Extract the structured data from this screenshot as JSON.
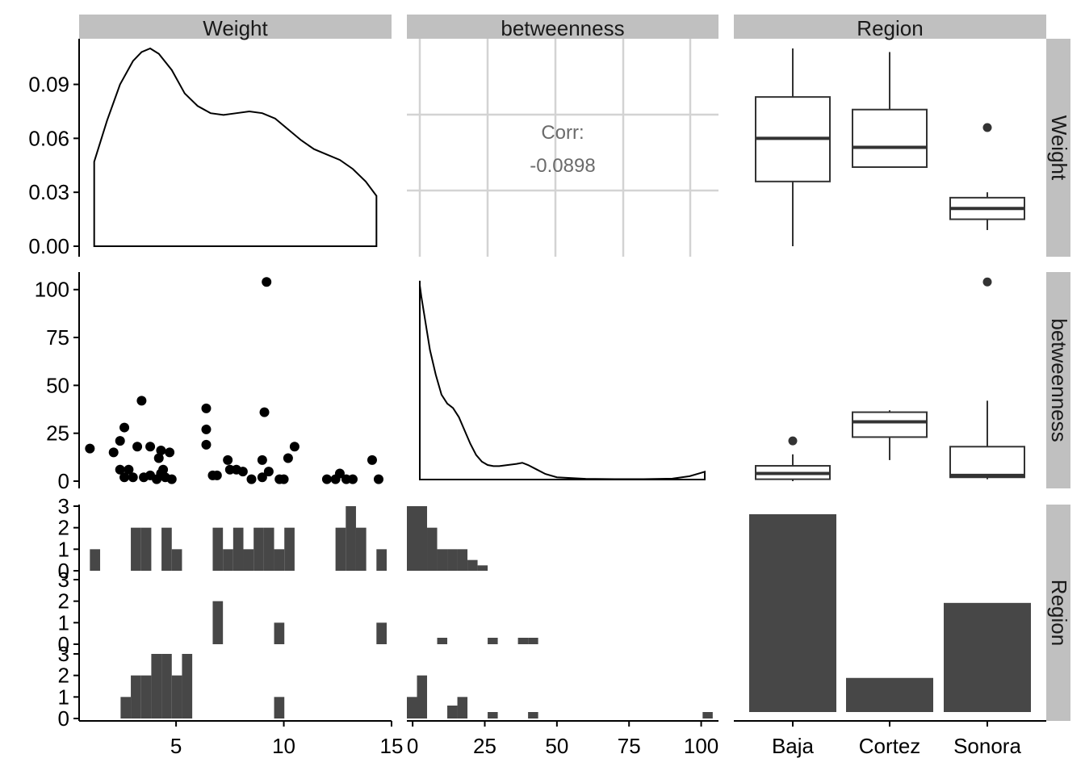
{
  "chart_data": {
    "type": "pairs",
    "variables": [
      "Weight",
      "betweenness",
      "Region"
    ],
    "row_strips": [
      "Weight",
      "betweenness",
      "Region"
    ],
    "col_strips": [
      "Weight",
      "betweenness",
      "Region"
    ],
    "regions": [
      "Baja",
      "Cortez",
      "Sonora"
    ],
    "axes": {
      "weight_x": {
        "range": [
          0.5,
          15
        ],
        "ticks": [
          5,
          10,
          15
        ]
      },
      "betweenness_x": {
        "range": [
          -2,
          106
        ],
        "ticks": [
          0,
          25,
          50,
          75,
          100
        ]
      },
      "weight_density_y": {
        "range": [
          0,
          0.11
        ],
        "ticks": [
          0.0,
          0.03,
          0.06,
          0.09
        ],
        "tick_labels": [
          "0.00",
          "0.03",
          "0.06",
          "0.09"
        ]
      },
      "betweenness_y": {
        "range": [
          0,
          110
        ],
        "ticks": [
          0,
          25,
          50,
          75,
          100
        ]
      },
      "count_y": {
        "range": [
          0,
          3
        ],
        "ticks": [
          0,
          1,
          2,
          3
        ]
      }
    },
    "weight_density": {
      "x": [
        1.2,
        1.8,
        2.4,
        3.0,
        3.4,
        3.8,
        4.2,
        4.8,
        5.4,
        6.0,
        6.6,
        7.2,
        7.8,
        8.4,
        9.0,
        9.6,
        10.2,
        10.8,
        11.4,
        12.0,
        12.6,
        13.2,
        13.8,
        14.3
      ],
      "y": [
        0.047,
        0.07,
        0.09,
        0.103,
        0.108,
        0.11,
        0.107,
        0.098,
        0.085,
        0.078,
        0.074,
        0.073,
        0.074,
        0.075,
        0.074,
        0.071,
        0.065,
        0.059,
        0.054,
        0.051,
        0.048,
        0.043,
        0.036,
        0.028
      ]
    },
    "betweenness_density": {
      "x": [
        -1,
        0,
        1,
        2,
        3,
        4,
        6,
        8,
        10,
        12,
        14,
        16,
        18,
        20,
        22,
        24,
        26,
        28,
        30,
        33,
        36,
        38,
        40,
        43,
        46,
        50,
        60,
        70,
        80,
        90,
        96,
        100,
        103,
        104
      ],
      "y": [
        80,
        86,
        89,
        87,
        82,
        74,
        58,
        47,
        38,
        34,
        32,
        28,
        22,
        16,
        11,
        8,
        6.5,
        6,
        6,
        6.5,
        7,
        7.5,
        6.5,
        4.5,
        2.5,
        1,
        0.3,
        0.2,
        0.2,
        0.4,
        1.5,
        3,
        3.5,
        3
      ]
    },
    "correlation": {
      "label": "Corr:",
      "value": "-0.0898"
    },
    "weight_betweenness_points": [
      {
        "x": 1.0,
        "y": 17
      },
      {
        "x": 2.1,
        "y": 15
      },
      {
        "x": 2.4,
        "y": 21
      },
      {
        "x": 2.6,
        "y": 28
      },
      {
        "x": 2.4,
        "y": 6
      },
      {
        "x": 2.6,
        "y": 2
      },
      {
        "x": 2.8,
        "y": 6
      },
      {
        "x": 3.0,
        "y": 2
      },
      {
        "x": 3.2,
        "y": 18
      },
      {
        "x": 3.4,
        "y": 42
      },
      {
        "x": 3.5,
        "y": 2
      },
      {
        "x": 3.8,
        "y": 18
      },
      {
        "x": 3.8,
        "y": 3
      },
      {
        "x": 4.1,
        "y": 1
      },
      {
        "x": 4.3,
        "y": 4
      },
      {
        "x": 4.2,
        "y": 12
      },
      {
        "x": 4.3,
        "y": 16
      },
      {
        "x": 4.4,
        "y": 6
      },
      {
        "x": 4.5,
        "y": 2
      },
      {
        "x": 4.7,
        "y": 15
      },
      {
        "x": 4.8,
        "y": 1
      },
      {
        "x": 6.4,
        "y": 38
      },
      {
        "x": 6.4,
        "y": 27
      },
      {
        "x": 6.4,
        "y": 19
      },
      {
        "x": 6.7,
        "y": 3
      },
      {
        "x": 6.9,
        "y": 3
      },
      {
        "x": 7.4,
        "y": 11
      },
      {
        "x": 7.5,
        "y": 6
      },
      {
        "x": 7.8,
        "y": 6
      },
      {
        "x": 8.1,
        "y": 5
      },
      {
        "x": 8.5,
        "y": 1
      },
      {
        "x": 9.0,
        "y": 11
      },
      {
        "x": 9.1,
        "y": 36
      },
      {
        "x": 9.2,
        "y": 104
      },
      {
        "x": 9.3,
        "y": 5
      },
      {
        "x": 9.0,
        "y": 2
      },
      {
        "x": 9.8,
        "y": 1
      },
      {
        "x": 10.0,
        "y": 1
      },
      {
        "x": 10.2,
        "y": 12
      },
      {
        "x": 10.5,
        "y": 18
      },
      {
        "x": 12.0,
        "y": 1
      },
      {
        "x": 12.4,
        "y": 1
      },
      {
        "x": 12.6,
        "y": 4
      },
      {
        "x": 12.9,
        "y": 1
      },
      {
        "x": 13.2,
        "y": 1
      },
      {
        "x": 14.1,
        "y": 11
      },
      {
        "x": 14.4,
        "y": 1
      }
    ],
    "weight_boxplots": [
      {
        "region": "Baja",
        "low": 0.0,
        "q1": 0.036,
        "median": 0.06,
        "q3": 0.083,
        "high": 0.11,
        "outliers": []
      },
      {
        "region": "Cortez",
        "low": 0.044,
        "q1": 0.044,
        "median": 0.055,
        "q3": 0.076,
        "high": 0.108,
        "outliers": []
      },
      {
        "region": "Sonora",
        "low": 0.009,
        "q1": 0.015,
        "median": 0.021,
        "q3": 0.027,
        "high": 0.03,
        "outliers": [
          0.066
        ]
      }
    ],
    "betweenness_boxplots": [
      {
        "region": "Baja",
        "low": 0,
        "q1": 1,
        "median": 4,
        "q3": 8,
        "high": 14,
        "outliers": [
          21
        ]
      },
      {
        "region": "Cortez",
        "low": 11,
        "q1": 23,
        "median": 31,
        "q3": 36,
        "high": 37,
        "outliers": []
      },
      {
        "region": "Sonora",
        "low": 1,
        "q1": 2,
        "median": 3,
        "q3": 18,
        "high": 42,
        "outliers": [
          104
        ]
      }
    ],
    "region_counts": {
      "Baja": 29,
      "Cortez": 5,
      "Sonora": 16
    },
    "weight_histograms": [
      {
        "region": "Baja",
        "bin_width": 0.475,
        "bins": [
          {
            "x0": 1.0,
            "count": 1
          },
          {
            "x0": 2.9,
            "count": 2
          },
          {
            "x0": 3.375,
            "count": 2
          },
          {
            "x0": 4.325,
            "count": 2
          },
          {
            "x0": 4.8,
            "count": 1
          },
          {
            "x0": 6.7,
            "count": 2
          },
          {
            "x0": 7.175,
            "count": 1
          },
          {
            "x0": 7.65,
            "count": 2
          },
          {
            "x0": 8.125,
            "count": 1
          },
          {
            "x0": 8.6,
            "count": 2
          },
          {
            "x0": 9.075,
            "count": 2
          },
          {
            "x0": 9.55,
            "count": 1
          },
          {
            "x0": 10.025,
            "count": 2
          },
          {
            "x0": 12.4,
            "count": 2
          },
          {
            "x0": 12.875,
            "count": 3
          },
          {
            "x0": 13.35,
            "count": 2
          },
          {
            "x0": 14.3,
            "count": 1
          }
        ]
      },
      {
        "region": "Cortez",
        "bin_width": 0.475,
        "bins": [
          {
            "x0": 6.7,
            "count": 2
          },
          {
            "x0": 9.55,
            "count": 1
          },
          {
            "x0": 14.3,
            "count": 1
          }
        ]
      },
      {
        "region": "Sonora",
        "bin_width": 0.475,
        "bins": [
          {
            "x0": 2.425,
            "count": 1
          },
          {
            "x0": 2.9,
            "count": 2
          },
          {
            "x0": 3.375,
            "count": 2
          },
          {
            "x0": 3.85,
            "count": 3
          },
          {
            "x0": 4.325,
            "count": 3
          },
          {
            "x0": 4.8,
            "count": 2
          },
          {
            "x0": 5.275,
            "count": 3
          },
          {
            "x0": 9.55,
            "count": 1
          }
        ]
      }
    ],
    "betweenness_histograms": [
      {
        "region": "Baja",
        "bin_width": 3.5,
        "bins": [
          {
            "x0": -2,
            "count": 3
          },
          {
            "x0": 1.5,
            "count": 3
          },
          {
            "x0": 5.0,
            "count": 2
          },
          {
            "x0": 8.5,
            "count": 1
          },
          {
            "x0": 12.0,
            "count": 1
          },
          {
            "x0": 15.5,
            "count": 1
          },
          {
            "x0": 19.0,
            "count": 0.5
          },
          {
            "x0": 22.5,
            "count": 0.25
          }
        ]
      },
      {
        "region": "Cortez",
        "bin_width": 3.5,
        "bins": [
          {
            "x0": 8.5,
            "count": 0.3
          },
          {
            "x0": 26,
            "count": 0.3
          },
          {
            "x0": 36.5,
            "count": 0.3
          },
          {
            "x0": 40,
            "count": 0.3
          }
        ]
      },
      {
        "region": "Sonora",
        "bin_width": 3.5,
        "bins": [
          {
            "x0": -2,
            "count": 1
          },
          {
            "x0": 1.5,
            "count": 2
          },
          {
            "x0": 12.0,
            "count": 0.6
          },
          {
            "x0": 15.5,
            "count": 1
          },
          {
            "x0": 26,
            "count": 0.3
          },
          {
            "x0": 40,
            "count": 0.3
          },
          {
            "x0": 100.5,
            "count": 0.3
          }
        ]
      }
    ],
    "colors": {
      "strip_background": "#c0c0c0",
      "fill": "#474747",
      "line": "#000000",
      "grid": "#d3d3d3",
      "correlation_text": "#6b6b6b"
    },
    "grid": true
  }
}
